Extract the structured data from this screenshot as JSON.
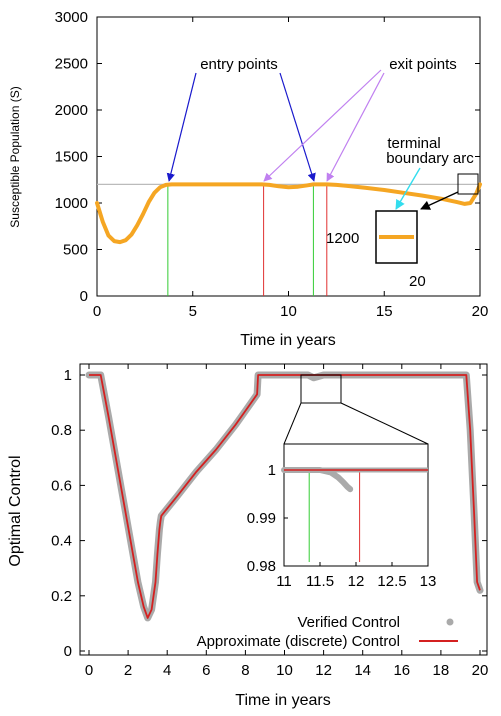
{
  "chart_data": [
    {
      "type": "line",
      "ylabel": "Susceptible Population (S)",
      "xlabel": "Time in years",
      "xlim": [
        0,
        20
      ],
      "ylim": [
        0,
        3000
      ],
      "x_ticks": [
        "0",
        "5",
        "10",
        "15",
        "20"
      ],
      "y_ticks": [
        "0",
        "500",
        "1000",
        "1500",
        "2000",
        "2500",
        "3000"
      ],
      "grid": false,
      "series": [
        {
          "color": "#f5a623",
          "x": [
            0,
            0.3,
            0.6,
            0.9,
            1.2,
            1.5,
            1.8,
            2.1,
            2.4,
            2.7,
            3.0,
            3.3,
            3.6,
            3.9,
            4.5,
            5,
            6,
            7,
            8,
            8.6,
            9.0,
            9.5,
            10.0,
            10.5,
            11.0,
            11.3,
            11.6,
            12.0,
            12.5,
            13,
            14,
            15,
            16,
            17,
            18,
            18.8,
            19.2,
            19.5,
            19.8,
            20.0
          ],
          "y": [
            1000,
            800,
            650,
            590,
            580,
            600,
            660,
            760,
            880,
            1010,
            1110,
            1170,
            1195,
            1200,
            1200,
            1200,
            1200,
            1200,
            1200,
            1200,
            1195,
            1180,
            1170,
            1175,
            1190,
            1200,
            1200,
            1200,
            1195,
            1185,
            1165,
            1140,
            1110,
            1080,
            1045,
            1010,
            990,
            1000,
            1100,
            1200
          ]
        }
      ],
      "reference_line": {
        "y": 1200,
        "color": "#bbbbbb"
      },
      "vlines": [
        {
          "x": 3.7,
          "color": "#33cc33"
        },
        {
          "x": 8.7,
          "color": "#e03030"
        },
        {
          "x": 11.3,
          "color": "#33cc33"
        },
        {
          "x": 12.0,
          "color": "#e03030"
        }
      ],
      "annotations": {
        "entry": "entry points",
        "exit": "exit points",
        "terminal_1": "terminal",
        "terminal_2": "boundary arc",
        "inset_y": "1200",
        "inset_x": "20"
      },
      "colors": {
        "entry_arrow": "#1a1acc",
        "exit_arrow": "#c080f0",
        "terminal_arrow": "#33ddee"
      }
    },
    {
      "type": "line",
      "ylabel": "Optimal Control",
      "xlabel": "Time in years",
      "xlim": [
        0,
        20
      ],
      "ylim": [
        0,
        1
      ],
      "x_ticks": [
        "0",
        "2",
        "4",
        "6",
        "8",
        "10",
        "12",
        "14",
        "16",
        "18",
        "20"
      ],
      "y_ticks": [
        "0",
        "0.2",
        "0.4",
        "0.6",
        "0.8",
        "1"
      ],
      "grid": false,
      "legend_position": "bottom-right",
      "series": [
        {
          "name": "Verified Control",
          "color": "#aaaaaa",
          "x": [
            0,
            0.6,
            1.0,
            1.5,
            2.0,
            2.5,
            2.8,
            3.0,
            3.2,
            3.4,
            3.5,
            3.6,
            3.65,
            3.7,
            4.5,
            5.5,
            6.5,
            7.5,
            8.0,
            8.6,
            8.65,
            9.5,
            10.5,
            11.0,
            11.2,
            11.5,
            12.0,
            13.0,
            14,
            15,
            16,
            17,
            18,
            19.0,
            19.3,
            19.5,
            19.7,
            19.85,
            20.0
          ],
          "y": [
            1,
            1,
            0.85,
            0.65,
            0.45,
            0.25,
            0.16,
            0.12,
            0.15,
            0.25,
            0.35,
            0.44,
            0.47,
            0.49,
            0.56,
            0.65,
            0.73,
            0.82,
            0.87,
            0.93,
            1,
            1,
            1,
            1,
            1,
            0.99,
            1,
            1,
            1,
            1,
            1,
            1,
            1,
            1,
            1,
            0.8,
            0.5,
            0.25,
            0.22
          ]
        },
        {
          "name": "Approximate (discrete) Control",
          "color": "#d42020",
          "x": [
            0,
            0.6,
            1.0,
            1.5,
            2.0,
            2.5,
            2.8,
            3.0,
            3.2,
            3.4,
            3.5,
            3.6,
            3.65,
            3.7,
            4.5,
            5.5,
            6.5,
            7.5,
            8.0,
            8.6,
            8.65,
            9.5,
            10.5,
            11.0,
            12.0,
            13.0,
            14,
            15,
            16,
            17,
            18,
            19.0,
            19.3,
            19.5,
            19.7,
            19.85,
            20.0
          ],
          "y": [
            1,
            1,
            0.85,
            0.65,
            0.45,
            0.25,
            0.16,
            0.12,
            0.15,
            0.25,
            0.35,
            0.44,
            0.47,
            0.49,
            0.56,
            0.65,
            0.73,
            0.82,
            0.87,
            0.93,
            1,
            1,
            1,
            1,
            1,
            1,
            1,
            1,
            1,
            1,
            1,
            1,
            1,
            0.8,
            0.5,
            0.25,
            0.22
          ]
        }
      ],
      "inset": {
        "xlim": [
          11,
          13
        ],
        "ylim": [
          0.98,
          1.003
        ],
        "x_ticks": [
          "11",
          "11.5",
          "12",
          "12.5",
          "13"
        ],
        "y_ticks": [
          "0.98",
          "0.99",
          "1"
        ],
        "vlines": [
          {
            "x": 11.35,
            "color": "#33cc33"
          },
          {
            "x": 12.05,
            "color": "#e03030"
          }
        ],
        "verified_x": [
          11,
          11.2,
          11.5,
          11.65,
          11.75,
          11.82,
          11.88,
          11.92
        ],
        "verified_y": [
          1,
          1,
          1,
          0.9995,
          0.9985,
          0.9975,
          0.9965,
          0.996
        ],
        "approx_x": [
          11,
          13
        ],
        "approx_y": [
          1,
          1
        ]
      }
    }
  ]
}
